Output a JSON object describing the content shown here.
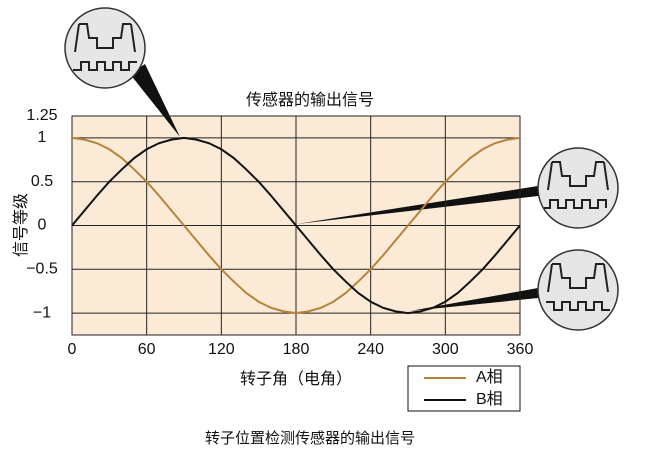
{
  "chart_data": {
    "type": "line",
    "title": "传感器的输出信号",
    "x_label": "转子角（电角）",
    "y_label": "信号等级",
    "caption": "转子位置检测传感器的输出信号",
    "x": [
      0,
      10,
      20,
      30,
      40,
      50,
      60,
      70,
      80,
      90,
      100,
      110,
      120,
      130,
      140,
      150,
      160,
      170,
      180,
      190,
      200,
      210,
      220,
      230,
      240,
      250,
      260,
      270,
      280,
      290,
      300,
      310,
      320,
      330,
      340,
      350,
      360
    ],
    "series": [
      {
        "name": "A相",
        "color": "#b8823a",
        "values": [
          1,
          0.98,
          0.94,
          0.87,
          0.77,
          0.64,
          0.5,
          0.34,
          0.17,
          0,
          -0.17,
          -0.34,
          -0.5,
          -0.64,
          -0.77,
          -0.87,
          -0.94,
          -0.98,
          -1,
          -0.98,
          -0.94,
          -0.87,
          -0.77,
          -0.64,
          -0.5,
          -0.34,
          -0.17,
          0,
          0.17,
          0.34,
          0.5,
          0.64,
          0.77,
          0.87,
          0.94,
          0.98,
          1
        ]
      },
      {
        "name": "B相",
        "color": "#111111",
        "values": [
          0,
          0.17,
          0.34,
          0.5,
          0.64,
          0.77,
          0.87,
          0.94,
          0.98,
          1,
          0.98,
          0.94,
          0.87,
          0.77,
          0.64,
          0.5,
          0.34,
          0.17,
          0,
          -0.17,
          -0.34,
          -0.5,
          -0.64,
          -0.77,
          -0.87,
          -0.94,
          -0.98,
          -1,
          -0.98,
          -0.94,
          -0.87,
          -0.77,
          -0.64,
          -0.5,
          -0.34,
          -0.17,
          0
        ]
      }
    ],
    "xlim": [
      0,
      360
    ],
    "xticks": [
      0,
      60,
      120,
      180,
      240,
      300,
      360
    ],
    "ylim": [
      -1.25,
      1.25
    ],
    "yticks": [
      {
        "value": -1,
        "label": "−1"
      },
      {
        "value": -0.5,
        "label": "−0.5"
      },
      0,
      0.5,
      1,
      1.25
    ],
    "grid": true,
    "background": "#fbead6"
  }
}
